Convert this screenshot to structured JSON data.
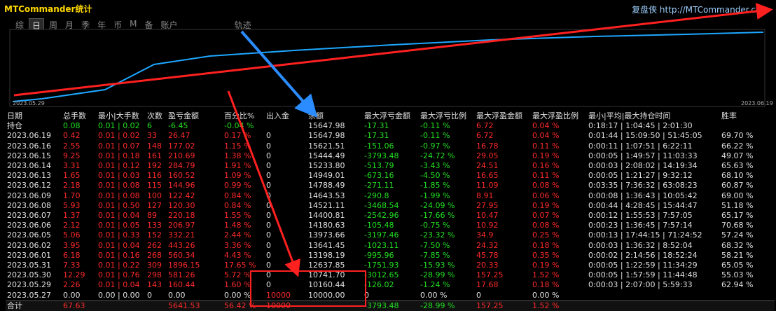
{
  "header": {
    "title": "MTCommander统计",
    "site": "复盘侠 http://MTCommander.com"
  },
  "tabs": [
    "综",
    "日",
    "周",
    "月",
    "季",
    "年",
    "币",
    "M",
    "备",
    "账户",
    "轨迹"
  ],
  "chart": {
    "start_date": "2023.05.29",
    "end_date": "2023.06.19"
  },
  "table": {
    "columns": [
      "日期",
      "总手数",
      "最小|大手数",
      "次数",
      "盈亏金额",
      "百分比%",
      "出入金",
      "余额",
      "最大浮亏金额",
      "最大浮亏比例",
      "最大浮盈金额",
      "最大浮盈比例",
      "最小|平均|最大持仓时间",
      "胜率"
    ],
    "rows": [
      [
        "持仓",
        "0.08",
        "0.01 | 0.02",
        "6",
        "-6.45",
        "-0.04 %",
        null,
        "15647.98",
        "-17.31",
        "-0.11 %",
        "6.72",
        "0.04 %",
        "0:18:17 | 1:04:45 | 2:01:30",
        null
      ],
      [
        "2023.06.19",
        "0.42",
        "0.01 | 0.02",
        "33",
        "26.47",
        "0.17 %",
        "0",
        "15647.98",
        "-17.31",
        "-0.11 %",
        "6.72",
        "0.04 %",
        "0:01:44 | 15:09:50 | 51:45:05",
        "69.70 %"
      ],
      [
        "2023.06.16",
        "2.55",
        "0.01 | 0.07",
        "148",
        "177.02",
        "1.15 %",
        "0",
        "15621.51",
        "-151.06",
        "-0.97 %",
        "16.78",
        "0.11 %",
        "0:00:11 | 1:07:51 | 6:22:11",
        "66.22 %"
      ],
      [
        "2023.06.15",
        "9.25",
        "0.01 | 0.18",
        "161",
        "210.69",
        "1.38 %",
        "0",
        "15444.49",
        "-3793.48",
        "-24.72 %",
        "29.05",
        "0.19 %",
        "0:00:05 | 1:49:57 | 11:03:33",
        "49.07 %"
      ],
      [
        "2023.06.14",
        "3.31",
        "0.01 | 0.12",
        "192",
        "284.79",
        "1.91 %",
        "0",
        "15233.80",
        "-513.79",
        "-3.43 %",
        "24.51",
        "0.16 %",
        "0:00:03 | 2:08:02 | 14:19:34",
        "65.63 %"
      ],
      [
        "2023.06.13",
        "1.65",
        "0.01 | 0.03",
        "116",
        "160.52",
        "1.09 %",
        "0",
        "14949.01",
        "-673.16",
        "-4.50 %",
        "16.65",
        "0.11 %",
        "0:00:05 | 1:21:27 | 9:32:12",
        "68.10 %"
      ],
      [
        "2023.06.12",
        "2.18",
        "0.01 | 0.08",
        "115",
        "144.96",
        "0.99 %",
        "0",
        "14788.49",
        "-271.11",
        "-1.85 %",
        "11.09",
        "0.08 %",
        "0:03:35 | 7:36:32 | 63:08:23",
        "60.87 %"
      ],
      [
        "2023.06.09",
        "1.70",
        "0.01 | 0.08",
        "100",
        "122.42",
        "0.84 %",
        "0",
        "14643.53",
        "-290.8",
        "-1.99 %",
        "8.91",
        "0.06 %",
        "0:00:08 | 1:36:43 | 10:05:42",
        "69.00 %"
      ],
      [
        "2023.06.08",
        "5.93",
        "0.01 | 0.50",
        "127",
        "120.30",
        "0.84 %",
        "0",
        "14521.11",
        "-3468.54",
        "-24.09 %",
        "27.95",
        "0.19 %",
        "0:00:44 | 4:28:45 | 15:44:47",
        "51.18 %"
      ],
      [
        "2023.06.07",
        "1.37",
        "0.01 | 0.04",
        "89",
        "220.18",
        "1.55 %",
        "0",
        "14400.81",
        "-2542.96",
        "-17.66 %",
        "10.47",
        "0.07 %",
        "0:00:12 | 1:55:53 | 7:57:05",
        "65.17 %"
      ],
      [
        "2023.06.06",
        "2.12",
        "0.01 | 0.05",
        "133",
        "206.97",
        "1.48 %",
        "0",
        "14180.63",
        "-105.48",
        "-0.75 %",
        "10.92",
        "0.08 %",
        "0:00:23 | 1:36:45 | 7:57:14",
        "70.68 %"
      ],
      [
        "2023.06.05",
        "5.06",
        "0.01 | 0.33",
        "152",
        "332.21",
        "2.44 %",
        "0",
        "13973.66",
        "-3197.46",
        "-23.32 %",
        "34.9",
        "0.25 %",
        "0:00:13 | 17:44:15 | 71:24:52",
        "57.24 %"
      ],
      [
        "2023.06.02",
        "3.95",
        "0.01 | 0.04",
        "262",
        "443.26",
        "3.36 %",
        "0",
        "13641.45",
        "-1023.11",
        "-7.50 %",
        "24.32",
        "0.18 %",
        "0:00:03 | 1:36:32 | 8:52:04",
        "68.32 %"
      ],
      [
        "2023.06.01",
        "6.18",
        "0.01 | 0.16",
        "268",
        "560.34",
        "4.43 %",
        "0",
        "13198.19",
        "-995.96",
        "-7.85 %",
        "45.78",
        "0.35 %",
        "0:00:02 | 2:14:56 | 18:52:24",
        "58.21 %"
      ],
      [
        "2023.05.31",
        "7.33",
        "0.01 | 0.22",
        "309",
        "1896.15",
        "17.65 %",
        "0",
        "12637.85",
        "-1751.93",
        "-15.93 %",
        "20.33",
        "0.19 %",
        "0:00:05 | 1:22:59 | 11:34:29",
        "65.05 %"
      ],
      [
        "2023.05.30",
        "12.29",
        "0.01 | 0.76",
        "298",
        "581.26",
        "5.72 %",
        "0",
        "10741.70",
        "-3012.65",
        "-28.99 %",
        "157.25",
        "1.52 %",
        "0:00:05 | 1:57:59 | 11:44:48",
        "55.03 %"
      ],
      [
        "2023.05.29",
        "2.26",
        "0.01 | 0.04",
        "143",
        "160.44",
        "1.60 %",
        "0",
        "10160.44",
        "-126.02",
        "-1.24 %",
        "17.68",
        "0.18 %",
        "0:00:03 | 2:07:00 | 5:59:33",
        "62.94 %"
      ],
      [
        "2023.05.27",
        "0.00",
        "0.00 | 0.00",
        "0",
        "0.00",
        "0.00 %",
        "10000",
        "10000.00",
        "0",
        "0.00 %",
        "0",
        "0.00 %",
        null,
        null
      ],
      [
        "合计",
        "67.63",
        null,
        null,
        "5641.53",
        "56.42 %",
        "10000",
        null,
        "-3793.48",
        "-28.99 %",
        "157.25",
        "1.52 %",
        null,
        null
      ]
    ]
  }
}
